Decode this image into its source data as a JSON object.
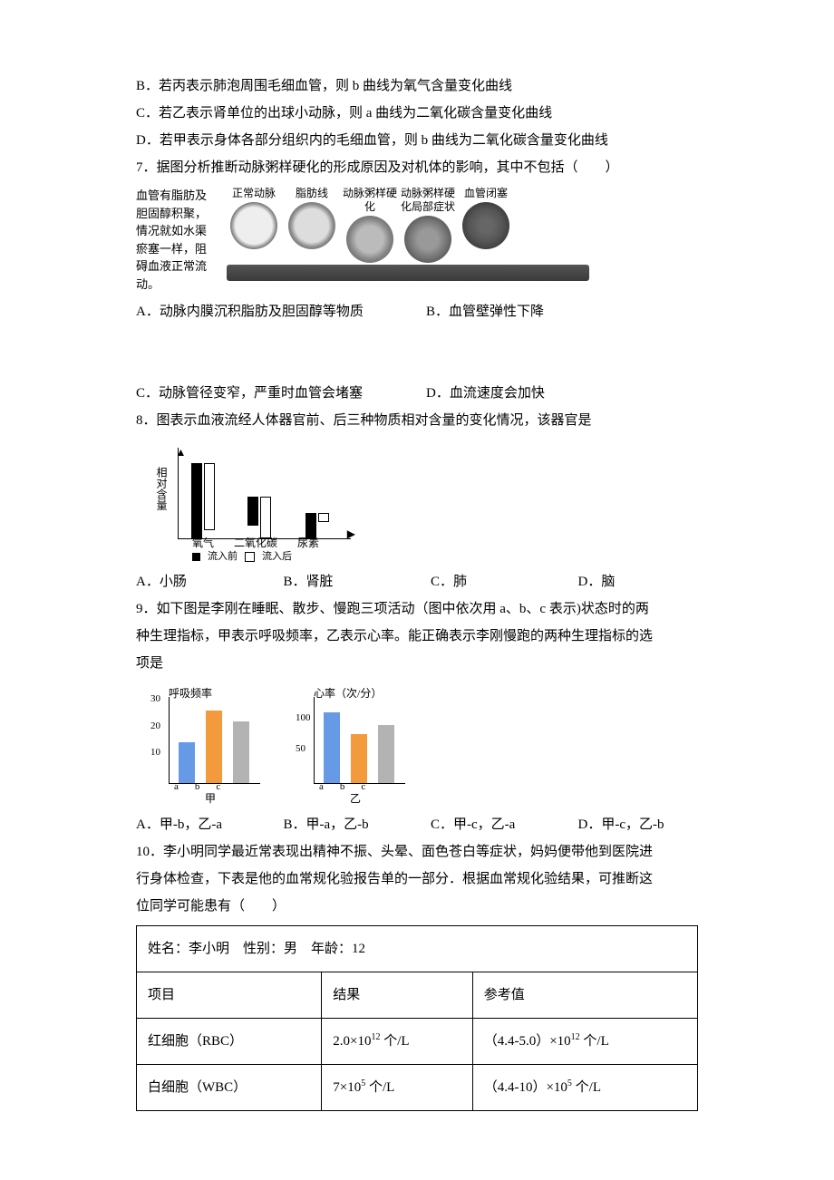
{
  "q_text": {
    "b": "B．若丙表示肺泡周围毛细血管，则 b 曲线为氧气含量变化曲线",
    "c": "C．若乙表示肾单位的出球小动脉，则 a 曲线为二氧化碳含量变化曲线",
    "d": "D．若甲表示身体各部分组织内的毛细血管，则 b 曲线为二氧化碳含量变化曲线"
  },
  "q7": {
    "stem": "7．据图分析推断动脉粥样硬化的形成原因及对机体的影响，其中不包括（　　）",
    "side_text": "血管有脂肪及胆固醇积聚，情况就如水渠瘀塞一样，阻碍血液正常流动。",
    "stages": [
      "正常动脉",
      "脂肪线",
      "动脉粥样硬化",
      "动脉粥样硬化局部症状",
      "血管闭塞"
    ],
    "opts": {
      "a": "A．动脉内膜沉积脂肪及胆固醇等物质",
      "b": "B．血管壁弹性下降",
      "c": "C．动脉管径变窄，严重时血管会堵塞",
      "d": "D．血流速度会加快"
    }
  },
  "q8": {
    "stem": "8．图表示血液流经人体器官前、后三种物质相对含量的变化情况，该器官是",
    "ylabel": "相对含量",
    "categories": [
      "氧气",
      "二氧化碳",
      "尿素"
    ],
    "series": [
      {
        "name": "流入前",
        "color": "#000000",
        "values": [
          90,
          35,
          30
        ]
      },
      {
        "name": "流入后",
        "color": "#ffffff",
        "values": [
          80,
          50,
          10
        ]
      }
    ],
    "border_color": "#000000",
    "opts": {
      "a": "A．小肠",
      "b": "B．肾脏",
      "c": "C．肺",
      "d": "D．脑"
    }
  },
  "q9": {
    "stem1": "9．如下图是李刚在睡眠、散步、慢跑三项活动（图中依次用 a、b、c 表示)状态时的两",
    "stem2": "种生理指标，甲表示呼吸频率，乙表示心率。能正确表示李刚慢跑的两种生理指标的选",
    "stem3": "项是",
    "charts": [
      {
        "title": "呼吸频率",
        "sub": "甲",
        "yticks": [
          10,
          20,
          30
        ],
        "ymax": 32,
        "bars": [
          {
            "label": "a",
            "value": 15,
            "color": "#6699e6"
          },
          {
            "label": "b",
            "value": 27,
            "color": "#f39a3d"
          },
          {
            "label": "c",
            "value": 23,
            "color": "#b3b3b3"
          }
        ]
      },
      {
        "title": "心率（次/分）",
        "sub": "乙",
        "yticks": [
          50,
          100
        ],
        "ymax": 140,
        "bars": [
          {
            "label": "a",
            "value": 115,
            "color": "#6699e6"
          },
          {
            "label": "b",
            "value": 80,
            "color": "#f39a3d"
          },
          {
            "label": "c",
            "value": 95,
            "color": "#b3b3b3"
          }
        ]
      }
    ],
    "opts": {
      "a": "A．甲-b，乙-a",
      "b": "B．甲-a，乙-b",
      "c": "C．甲-c，乙-a",
      "d": "D．甲-c，乙-b"
    }
  },
  "q10": {
    "stem1": "10．李小明同学最近常表现出精神不振、头晕、面色苍白等症状，妈妈便带他到医院进",
    "stem2": "行身体检查，下表是他的血常规化验报告单的一部分．根据血常规化验结果，可推断这",
    "stem3": "位同学可能患有（　　）",
    "table_header": "姓名：李小明　性别：男　年龄：12",
    "cols": [
      "项目",
      "结果",
      "参考值"
    ],
    "rows": [
      [
        "红细胞（RBC）",
        "2.0×10<sup>12</sup> 个/L",
        "（4.4-5.0）×10<sup>12</sup> 个/L"
      ],
      [
        "白细胞（WBC）",
        "7×10<sup>5</sup> 个/L",
        "（4.4-10）×10<sup>5</sup> 个/L"
      ]
    ]
  }
}
